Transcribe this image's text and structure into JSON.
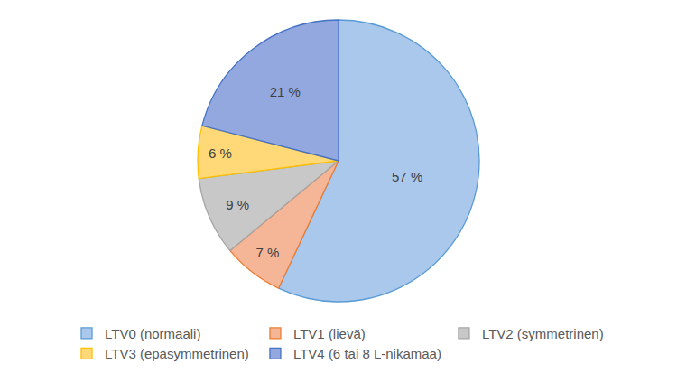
{
  "chart_data": {
    "type": "pie",
    "categories": [
      "LTV0 (normaali)",
      "LTV1 (lievä)",
      "LTV2 (symmetrinen)",
      "LTV3 (epäsymmetrinen)",
      "LTV4 (6 tai 8 L-nikamaa)"
    ],
    "values": [
      57,
      7,
      9,
      6,
      21
    ],
    "value_labels": [
      "57 %",
      "7 %",
      "9 %",
      "6 %",
      "21 %"
    ],
    "colors": [
      "#a9c8ec",
      "#f5b597",
      "#c8c8c8",
      "#ffd878",
      "#94a8e0"
    ],
    "data_labels": true,
    "legend": "bottom"
  }
}
